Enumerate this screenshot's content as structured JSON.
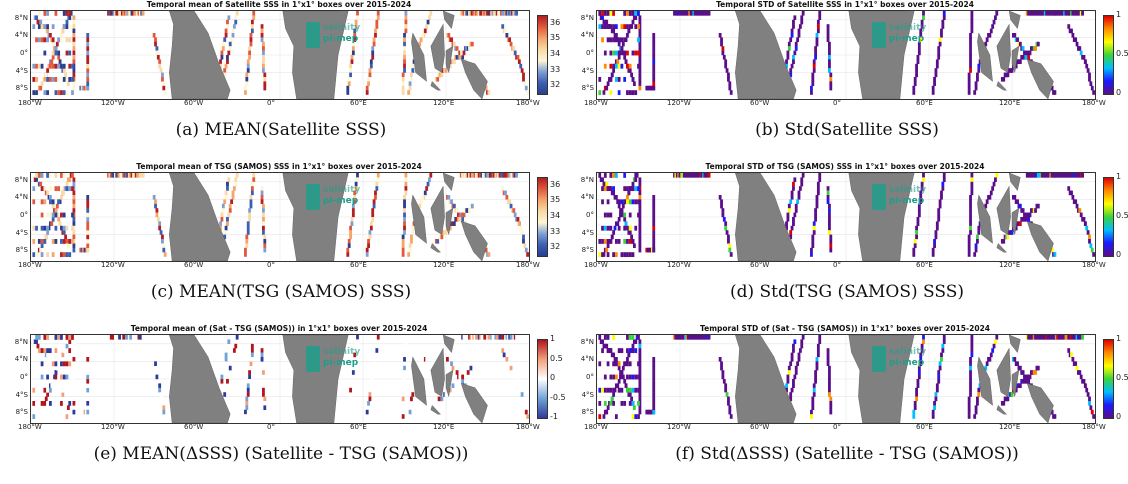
{
  "colors": {
    "land": "#808080",
    "logo": "#1e9e8a",
    "salinity_scale": [
      "#fdf6d4",
      "#f9d9a6",
      "#f5a46b",
      "#e2583d",
      "#b41d22"
    ],
    "salinity_low": [
      "#7f9fd4",
      "#3b5fb3",
      "#2a3e8f"
    ],
    "std_scale": [
      "#5a0e8a",
      "#1a1aff",
      "#00bfff",
      "#3cd23c",
      "#ffff00",
      "#ff8c00",
      "#e00000"
    ],
    "diff_scale": [
      "#2c3a9a",
      "#6fa3d6",
      "#ffffff",
      "#f3a07a",
      "#b2141b"
    ]
  },
  "watermark": {
    "line1": "salinity",
    "line2": "pi-mep"
  },
  "axis": {
    "yticks": [
      "8°N",
      "4°N",
      "0°",
      "4°S",
      "8°S"
    ],
    "xticks": [
      "180°W",
      "120°W",
      "60°W",
      "0°",
      "60°E",
      "120°E",
      "180°W"
    ]
  },
  "chart_data": [
    {
      "type": "heatmap",
      "title": "Temporal mean of Satellite SSS in 1°x1° boxes over 2015-2024",
      "caption": "(a) MEAN(Satellite SSS)",
      "colorbar": {
        "ticks": [
          "36",
          "35",
          "34",
          "33",
          "32"
        ],
        "range": [
          31.5,
          36.5
        ]
      }
    },
    {
      "type": "heatmap",
      "title": "Temporal STD of Satellite SSS in 1°x1° boxes over 2015-2024",
      "caption": "(b) Std(Satellite SSS)",
      "colorbar": {
        "ticks": [
          "1",
          "0.5",
          "0"
        ],
        "range": [
          0,
          1
        ]
      }
    },
    {
      "type": "heatmap",
      "title": "Temporal mean of TSG (SAMOS) SSS in 1°x1° boxes over 2015-2024",
      "caption": "(c) MEAN(TSG (SAMOS) SSS)",
      "colorbar": {
        "ticks": [
          "36",
          "35",
          "34",
          "33",
          "32"
        ],
        "range": [
          31.5,
          36.5
        ]
      }
    },
    {
      "type": "heatmap",
      "title": "Temporal STD of TSG (SAMOS) SSS in 1°x1° boxes over 2015-2024",
      "caption": "(d) Std(TSG (SAMOS) SSS)",
      "colorbar": {
        "ticks": [
          "1",
          "0.5",
          "0"
        ],
        "range": [
          0,
          1
        ]
      }
    },
    {
      "type": "heatmap",
      "title": "Temporal mean of (Sat - TSG (SAMOS)) in 1°x1° boxes over 2015-2024",
      "caption": "(e) MEAN(ΔSSS) (Satellite - TSG (SAMOS))",
      "colorbar": {
        "ticks": [
          "1",
          "0.5",
          "0",
          "-0.5",
          "-1"
        ],
        "range": [
          -1,
          1
        ]
      }
    },
    {
      "type": "heatmap",
      "title": "Temporal STD of (Sat - TSG (SAMOS)) in 1°x1° boxes over 2015-2024",
      "caption": "(f) Std(ΔSSS) (Satellite - TSG (SAMOS))",
      "colorbar": {
        "ticks": [
          "1",
          "0.5",
          "0"
        ],
        "range": [
          0,
          1
        ]
      }
    }
  ]
}
